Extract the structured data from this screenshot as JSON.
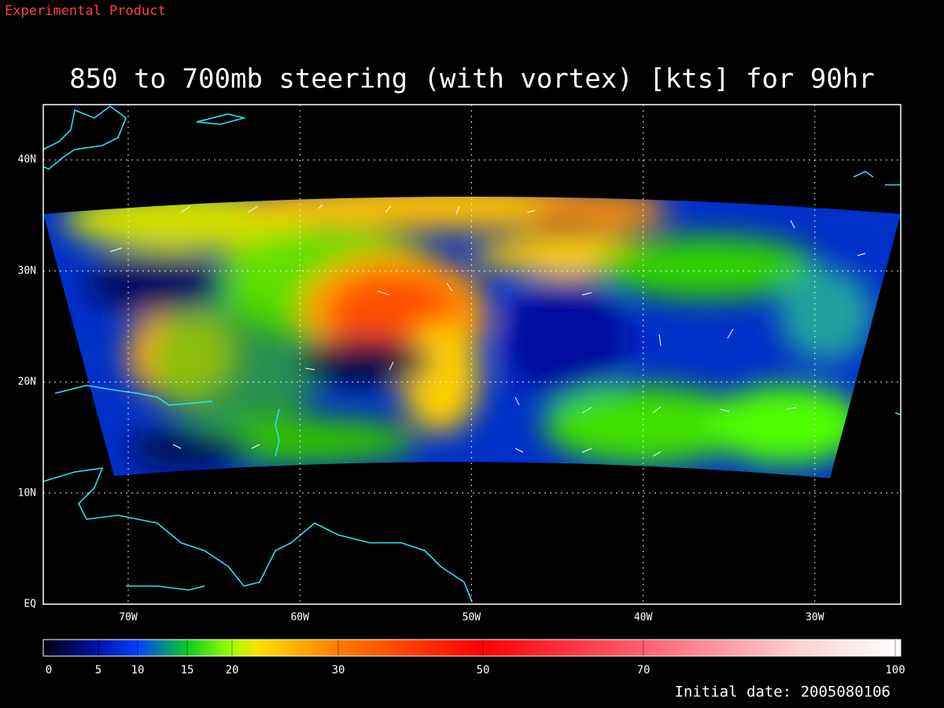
{
  "header": {
    "note": "Experimental Product",
    "title": "850 to 700mb steering (with vortex) [kts] for 90hr"
  },
  "map": {
    "lon_labels": [
      "70W",
      "60W",
      "50W",
      "40W",
      "30W"
    ],
    "lat_labels": [
      "EQ",
      "10N",
      "20N",
      "30N",
      "40N"
    ]
  },
  "colorbar": {
    "labels": [
      0,
      5,
      10,
      15,
      20,
      30,
      50,
      70,
      100
    ]
  },
  "footer": {
    "initial_date": "Initial date: 2005080106"
  }
}
